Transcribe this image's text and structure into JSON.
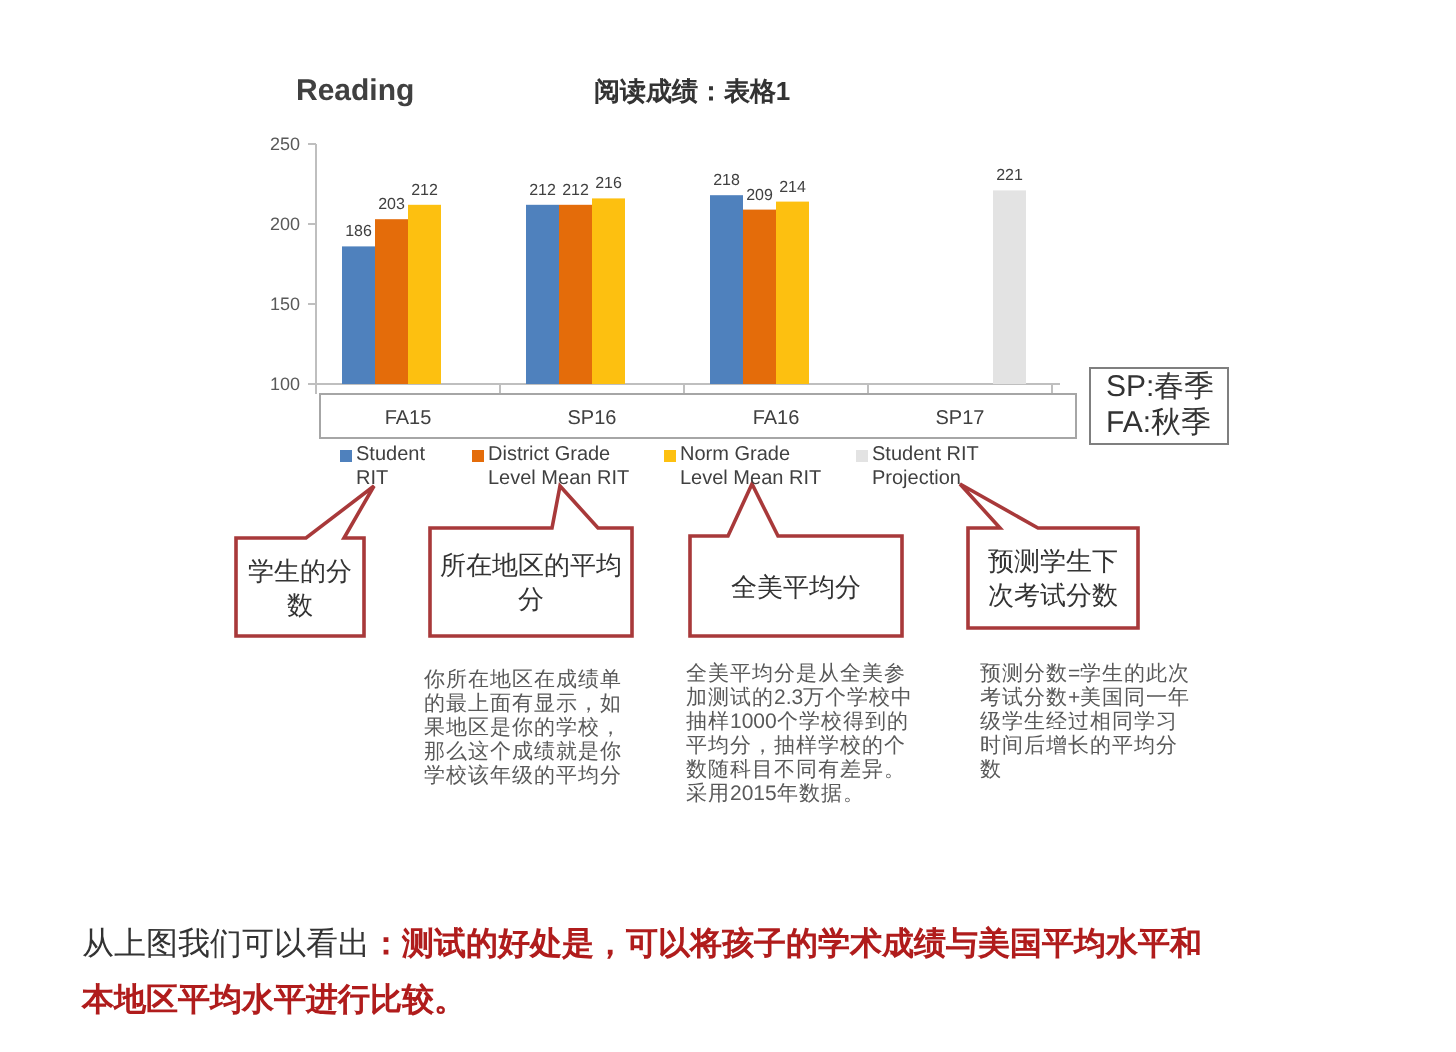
{
  "chart_data": {
    "type": "bar",
    "title": "Reading",
    "subtitle": "阅读成绩：表格1",
    "categories": [
      "FA15",
      "SP16",
      "FA16",
      "SP17"
    ],
    "series": [
      {
        "name": "Student RIT",
        "color": "#4f81bd",
        "values": [
          186,
          212,
          218,
          null
        ]
      },
      {
        "name": "District Grade Level Mean RIT",
        "color": "#e46c0a",
        "values": [
          203,
          212,
          209,
          null
        ]
      },
      {
        "name": "Norm Grade Level Mean RIT",
        "color": "#fdc010",
        "values": [
          212,
          216,
          214,
          null
        ]
      },
      {
        "name": "Student RIT Projection",
        "color": "#e3e3e3",
        "values": [
          null,
          null,
          null,
          221
        ]
      }
    ],
    "ylim": [
      100,
      250
    ],
    "yticks": [
      100,
      150,
      200,
      250
    ],
    "data_labels": true,
    "legend": "bottom",
    "annotations": [
      "SP:春季",
      "FA:秋季",
      "学生的分数",
      "所在地区的平均分",
      "全美平均分",
      "预测学生下次考试分数",
      "你所在地区在成绩单的最上面有显示，如果地区是你的学校，那么这个成绩就是你学校该年级的平均分",
      "全美平均分是从全美参加测试的2.3万个学校中抽样1000个学校得到的平均分，抽样学校的个数随科目不同有差异。采用2015年数据。",
      "预测分数=学生的此次考试分数+美国同一年级学生经过相同学习时间后增长的平均分数",
      "从上图我们可以看出",
      "：测试的好处是，可以将孩子的学术成绩与美国平均水平和",
      "本地区平均水平进行比较。"
    ]
  }
}
